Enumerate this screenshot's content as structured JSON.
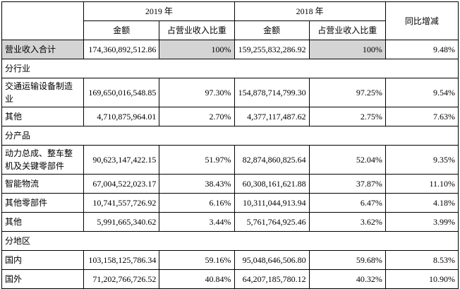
{
  "table": {
    "colors": {
      "shade": "#d4d4d4",
      "border": "#000000"
    },
    "header": {
      "corner": "",
      "year_2019": "2019 年",
      "year_2018": "2018 年",
      "yoy": "同比增减",
      "amount_2019": "金额",
      "share_2019": "占营业收入比重",
      "amount_2018": "金额",
      "share_2018": "占营业收入比重"
    },
    "rows": [
      {
        "type": "data",
        "shaded": true,
        "label": "营业收入合计",
        "amount_2019": "174,360,892,512.86",
        "share_2019": "100%",
        "amount_2018": "159,255,832,286.92",
        "share_2018": "100%",
        "yoy": "9.48%"
      },
      {
        "type": "section",
        "label": "分行业"
      },
      {
        "type": "data",
        "shaded": false,
        "label": "交通运输设备制造业",
        "amount_2019": "169,650,016,548.85",
        "share_2019": "97.30%",
        "amount_2018": "154,878,714,799.30",
        "share_2018": "97.25%",
        "yoy": "9.54%"
      },
      {
        "type": "data",
        "shaded": false,
        "label": "其他",
        "amount_2019": "4,710,875,964.01",
        "share_2019": "2.70%",
        "amount_2018": "4,377,117,487.62",
        "share_2018": "2.75%",
        "yoy": "7.63%"
      },
      {
        "type": "section",
        "label": "分产品"
      },
      {
        "type": "data",
        "shaded": false,
        "label": "动力总成、整车整机及关键零部件",
        "amount_2019": "90,623,147,422.15",
        "share_2019": "51.97%",
        "amount_2018": "82,874,860,825.64",
        "share_2018": "52.04%",
        "yoy": "9.35%"
      },
      {
        "type": "data",
        "shaded": false,
        "label": "智能物流",
        "amount_2019": "67,004,522,023.17",
        "share_2019": "38.43%",
        "amount_2018": "60,308,161,621.88",
        "share_2018": "37.87%",
        "yoy": "11.10%"
      },
      {
        "type": "data",
        "shaded": false,
        "label": "其他零部件",
        "amount_2019": "10,741,557,726.92",
        "share_2019": "6.16%",
        "amount_2018": "10,311,044,913.94",
        "share_2018": "6.47%",
        "yoy": "4.18%"
      },
      {
        "type": "data",
        "shaded": false,
        "label": "其他",
        "amount_2019": "5,991,665,340.62",
        "share_2019": "3.44%",
        "amount_2018": "5,761,764,925.46",
        "share_2018": "3.62%",
        "yoy": "3.99%"
      },
      {
        "type": "section",
        "label": "分地区"
      },
      {
        "type": "data",
        "shaded": false,
        "label": "国内",
        "amount_2019": "103,158,125,786.34",
        "share_2019": "59.16%",
        "amount_2018": "95,048,646,506.80",
        "share_2018": "59.68%",
        "yoy": "8.53%"
      },
      {
        "type": "data",
        "shaded": false,
        "label": "国外",
        "amount_2019": "71,202,766,726.52",
        "share_2019": "40.84%",
        "amount_2018": "64,207,185,780.12",
        "share_2018": "40.32%",
        "yoy": "10.90%"
      }
    ]
  }
}
